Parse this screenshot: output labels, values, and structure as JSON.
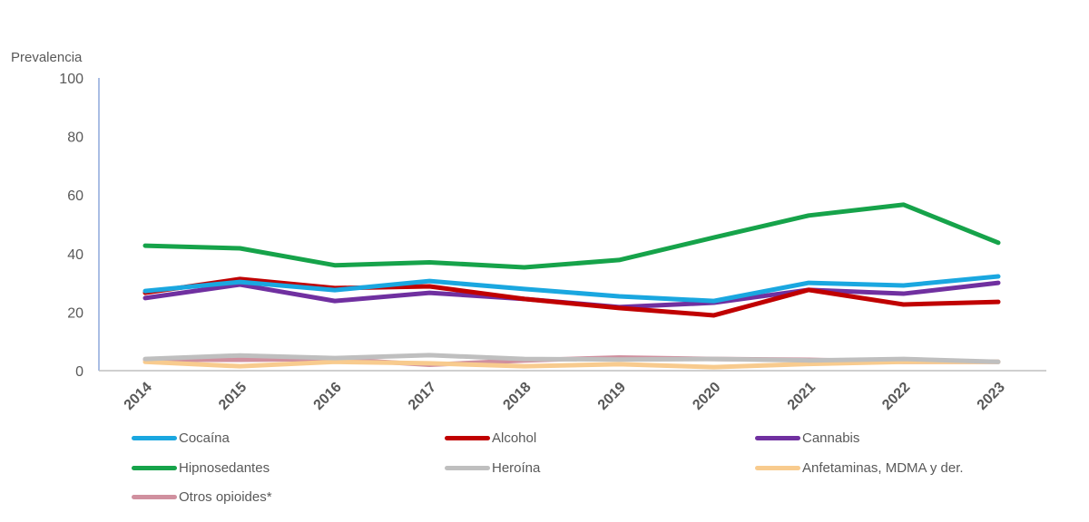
{
  "chart_data": {
    "type": "line",
    "ylabel": "Prevalencia",
    "ylim": [
      0,
      100
    ],
    "yticks": [
      0,
      20,
      40,
      60,
      80,
      100
    ],
    "x": [
      "2014",
      "2015",
      "2016",
      "2017",
      "2018",
      "2019",
      "2020",
      "2021",
      "2022",
      "2023"
    ],
    "grid": false,
    "legend_position": "bottom",
    "series": [
      {
        "name": "Cocaína",
        "color": "#1aa7e0",
        "values": [
          27.2,
          30.3,
          27.5,
          30.6,
          27.9,
          25.4,
          23.8,
          30.0,
          29.1,
          32.2
        ]
      },
      {
        "name": "Alcohol",
        "color": "#c00000",
        "values": [
          26.6,
          31.3,
          28.2,
          28.8,
          24.5,
          21.4,
          18.9,
          27.6,
          22.6,
          23.5
        ]
      },
      {
        "name": "Cannabis",
        "color": "#7030a0",
        "values": [
          24.8,
          29.4,
          23.8,
          26.6,
          24.5,
          21.7,
          23.2,
          27.6,
          26.3,
          30.0
        ]
      },
      {
        "name": "Hipnosedantes",
        "color": "#16a34a",
        "values": [
          42.7,
          41.8,
          36.0,
          37.0,
          35.3,
          37.8,
          45.5,
          53.0,
          56.7,
          43.7
        ]
      },
      {
        "name": "Heroína",
        "color": "#bfbfbf",
        "values": [
          4.0,
          5.2,
          4.3,
          5.3,
          4.0,
          3.8,
          4.0,
          3.5,
          4.0,
          3.0
        ]
      },
      {
        "name": "Anfetaminas, MDMA y der.",
        "color": "#f8cb8e",
        "values": [
          3.0,
          1.5,
          3.0,
          2.5,
          1.5,
          2.2,
          1.2,
          2.3,
          3.0,
          3.0
        ]
      },
      {
        "name": "Otros opioides*",
        "color": "#d0909f",
        "values": [
          3.8,
          3.7,
          4.0,
          2.0,
          3.5,
          4.5,
          4.0,
          3.7,
          3.0,
          3.0
        ]
      }
    ]
  }
}
